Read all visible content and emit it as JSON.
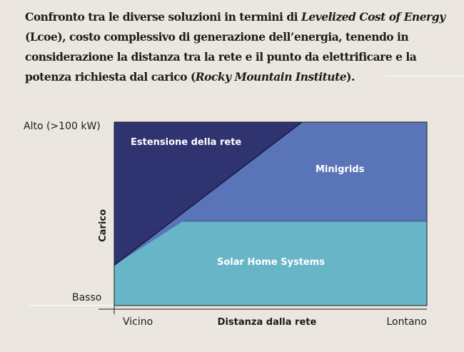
{
  "caption": {
    "part1": "Confronto tra le diverse soluzioni in termini di ",
    "italic1": "Levelized Cost of Energy",
    "part2": " (Lcoe), costo complessivo di generazione dell’energia, tenendo in considerazione la distanza tra la rete e il punto da elettrificare e la potenza richiesta dal carico (",
    "italic2": "Rocky Mountain Institute",
    "part3": ")."
  },
  "colors": {
    "background": "#ebe7e0",
    "grid_extension": "#2f3470",
    "minigrids": "#5a74b8",
    "solar_home_systems": "#68b5c8"
  },
  "chart_data": {
    "type": "area",
    "xlabel": "Distanza dalla rete",
    "ylabel": "Carico",
    "x_ticks": [
      "Vicino",
      "Lontano"
    ],
    "y_ticks": [
      "Basso",
      "Alto (>100 kW)"
    ],
    "xlim": [
      0,
      1
    ],
    "ylim": [
      0,
      1
    ],
    "grid": false,
    "regions": [
      {
        "name": "Estensione della rete",
        "color": "#2f3470",
        "boundary": [
          [
            0,
            0.22
          ],
          [
            0.6,
            1.0
          ]
        ]
      },
      {
        "name": "Minigrids",
        "color": "#5a74b8",
        "boundary": [
          [
            0,
            0.22
          ],
          [
            0.22,
            0.46
          ],
          [
            1.0,
            0.46
          ]
        ]
      },
      {
        "name": "Solar Home Systems",
        "color": "#68b5c8",
        "boundary": []
      }
    ]
  }
}
